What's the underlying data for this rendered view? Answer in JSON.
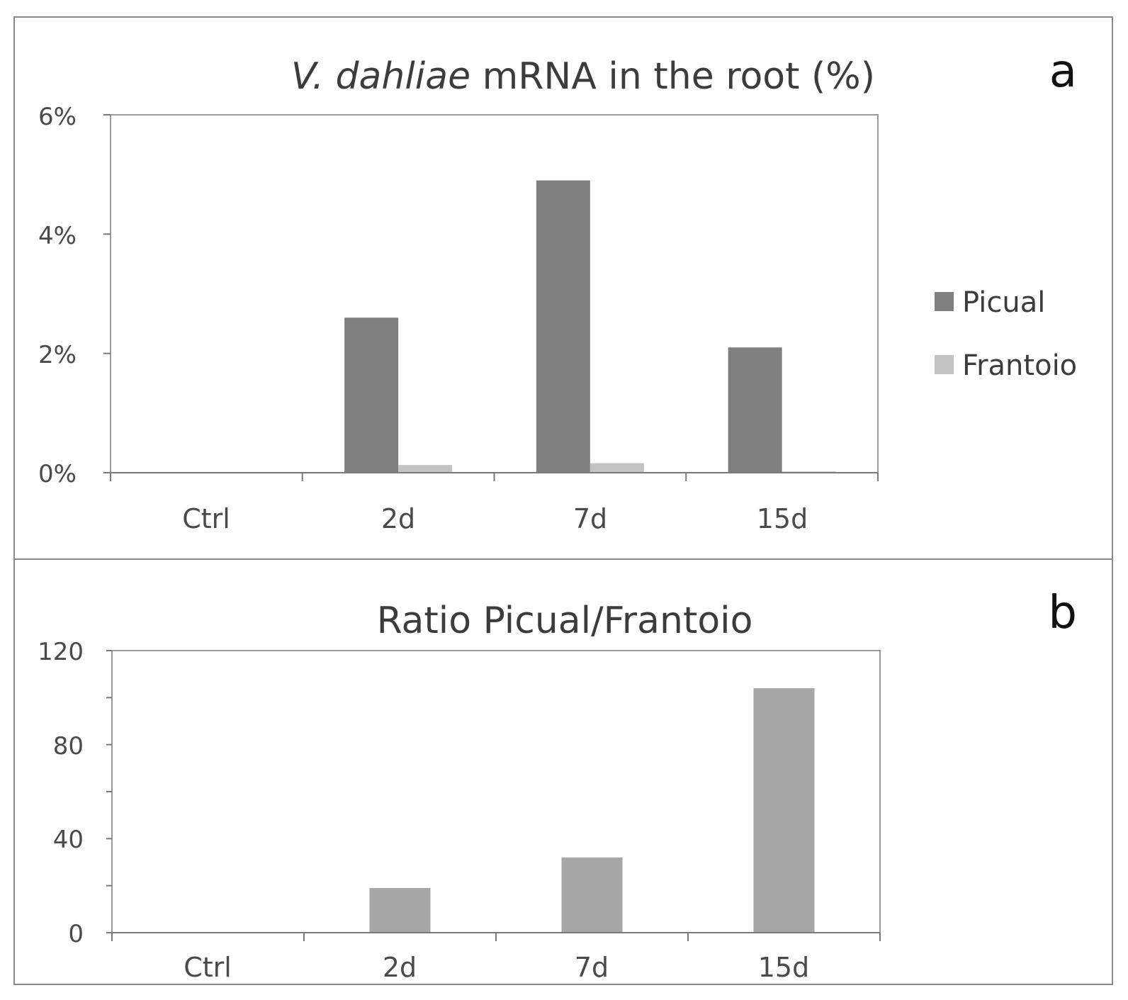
{
  "chart_data": [
    {
      "panel": "a",
      "type": "bar",
      "title_italic": "V. dahliae",
      "title_rest": " mRNA in the root (%)",
      "categories": [
        "Ctrl",
        "2d",
        "7d",
        "15d"
      ],
      "series": [
        {
          "name": "Picual",
          "color": "#7f7f7f",
          "values": [
            0,
            2.6,
            4.9,
            2.1
          ]
        },
        {
          "name": "Frantoio",
          "color": "#c3c3c3",
          "values": [
            0,
            0.13,
            0.16,
            0.02
          ]
        }
      ],
      "yticks": [
        "0%",
        "2%",
        "4%",
        "6%"
      ],
      "ylim": [
        0,
        6
      ],
      "legend_position": "right",
      "grid": false
    },
    {
      "panel": "b",
      "type": "bar",
      "title": "Ratio Picual/Frantoio",
      "categories": [
        "Ctrl",
        "2d",
        "7d",
        "15d"
      ],
      "series": [
        {
          "color": "#a6a6a6",
          "values": [
            0,
            19,
            32,
            104
          ]
        }
      ],
      "yticks": [
        "0",
        "40",
        "80",
        "120"
      ],
      "ylim": [
        0,
        120
      ],
      "grid": false
    }
  ]
}
